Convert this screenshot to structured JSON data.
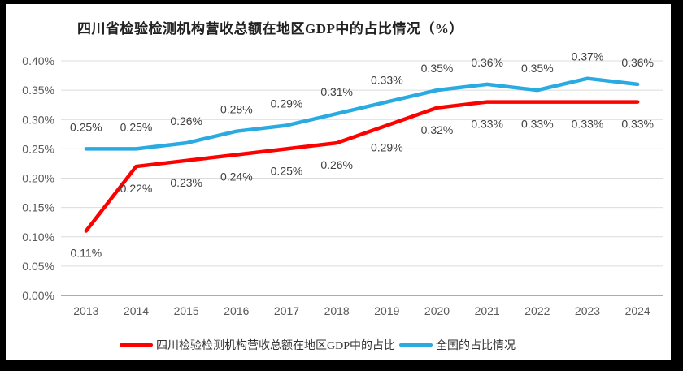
{
  "page": {
    "title": "四川省检验检测机构营收总额在地区GDP中的占比情况（%）"
  },
  "chart_data": {
    "type": "line",
    "title": "四川省检验检测机构营收总额在地区GDP中的占比情况（%）",
    "categories": [
      "2013",
      "2014",
      "2015",
      "2016",
      "2017",
      "2018",
      "2019",
      "2020",
      "2021",
      "2022",
      "2023",
      "2024"
    ],
    "series": [
      {
        "name": "四川检验检测机构营收总额在地区GDP中的占比",
        "color": "#FF0000",
        "values": [
          0.11,
          0.22,
          0.23,
          0.24,
          0.25,
          0.26,
          0.29,
          0.32,
          0.33,
          0.33,
          0.33,
          0.33
        ],
        "labels": [
          "0.11%",
          "0.22%",
          "0.23%",
          "0.24%",
          "0.25%",
          "0.26%",
          "0.29%",
          "0.32%",
          "0.33%",
          "0.33%",
          "0.33%",
          "0.33%"
        ],
        "label_position": "below"
      },
      {
        "name": "全国的占比情况",
        "color": "#29ABE2",
        "values": [
          0.25,
          0.25,
          0.26,
          0.28,
          0.29,
          0.31,
          0.33,
          0.35,
          0.36,
          0.35,
          0.37,
          0.36
        ],
        "labels": [
          "0.25%",
          "0.25%",
          "0.26%",
          "0.28%",
          "0.29%",
          "0.31%",
          "0.33%",
          "0.35%",
          "0.36%",
          "0.35%",
          "0.37%",
          "0.36%"
        ],
        "label_position": "above"
      }
    ],
    "y_axis": {
      "min": 0,
      "max": 0.4,
      "step": 0.05,
      "unit": "%",
      "tick_labels": [
        "0.00%",
        "0.05%",
        "0.10%",
        "0.15%",
        "0.20%",
        "0.25%",
        "0.30%",
        "0.35%",
        "0.40%"
      ]
    },
    "x_axis_label": "",
    "y_axis_label": "",
    "grid": true,
    "legend_position": "bottom"
  },
  "colors": {
    "sichuan_line": "#FF0000",
    "national_line": "#29ABE2",
    "gridline": "#DCDCDC",
    "axis_line": "#ACACAC",
    "tick_text": "#595959",
    "data_label_text": "#404040",
    "title_text": "#222222",
    "frame": "#000000",
    "background": "#FFFFFF"
  }
}
